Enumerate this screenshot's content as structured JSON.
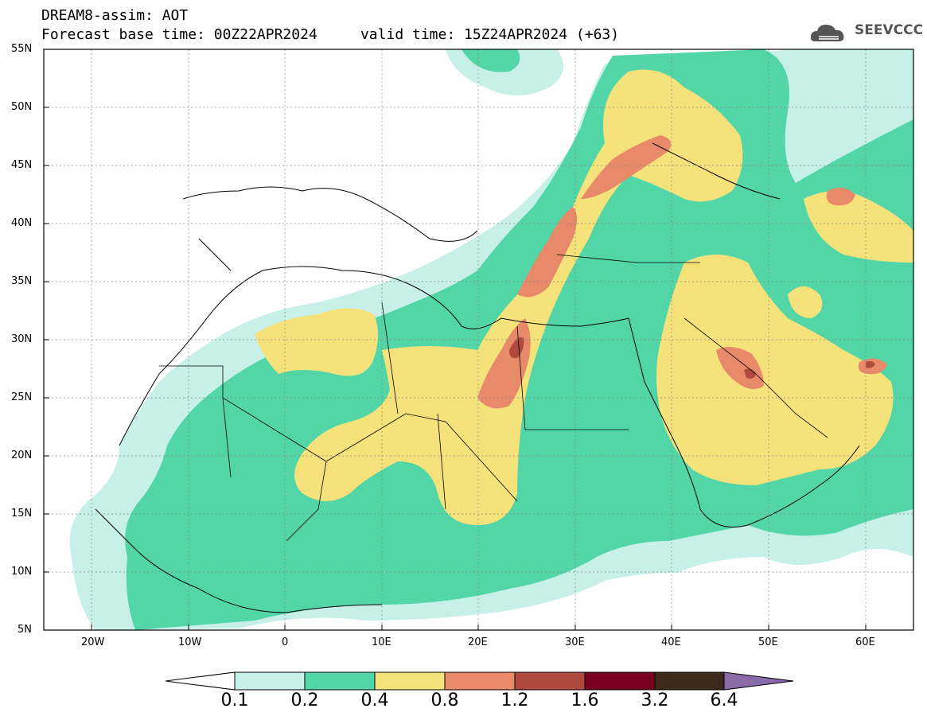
{
  "header": {
    "title_line1": "DREAM8-assim: AOT",
    "title_line2": "Forecast base time: 00Z22APR2024     valid time: 15Z24APR2024 (+63)",
    "logo_text": "SEEVCCC"
  },
  "axes": {
    "lat_labels": [
      "55N",
      "50N",
      "45N",
      "40N",
      "35N",
      "30N",
      "25N",
      "20N",
      "15N",
      "10N",
      "5N"
    ],
    "lon_labels": [
      "20W",
      "10W",
      "0",
      "10E",
      "20E",
      "30E",
      "40E",
      "50E",
      "60E"
    ]
  },
  "colorbar": {
    "labels": [
      "0.1",
      "0.2",
      "0.4",
      "0.8",
      "1.2",
      "1.6",
      "3.2",
      "6.4"
    ],
    "colors": [
      "#ffffff",
      "#c6f0e8",
      "#52d6a8",
      "#f5e27a",
      "#e8896a",
      "#b04a3e",
      "#7a0020",
      "#3e2a1a",
      "#8b6aa8"
    ]
  },
  "colors": {
    "ocean": "#ffffff",
    "border": "#000000",
    "aot_0_1": "#c6f0e8",
    "aot_0_2": "#52d6a8",
    "aot_0_4": "#f5e27a",
    "aot_0_8": "#e8896a",
    "aot_1_2": "#b04a3e"
  }
}
